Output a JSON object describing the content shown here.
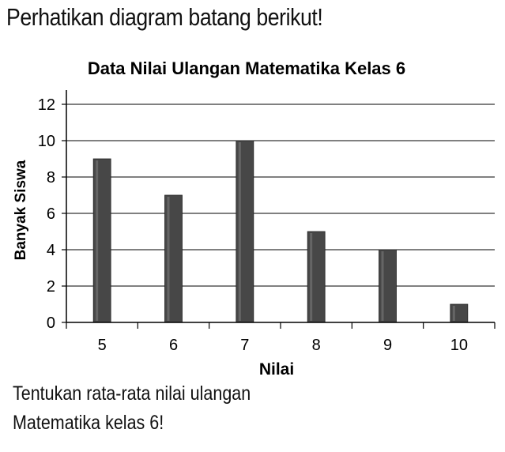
{
  "intro_text": "Perhatikan diagram batang berikut!",
  "question_lines": [
    "Tentukan rata-rata nilai ulangan",
    "Matematika kelas 6!"
  ],
  "colors": {
    "bar": "#474747",
    "bar_highlight": "#7a7a7a",
    "axis": "#000000",
    "grid": "#000000"
  },
  "chart_data": {
    "type": "bar",
    "title": "Data Nilai Ulangan Matematika Kelas 6",
    "xlabel": "Nilai",
    "ylabel": "Banyak Siswa",
    "categories": [
      "5",
      "6",
      "7",
      "8",
      "9",
      "10"
    ],
    "values": [
      9,
      7,
      10,
      5,
      4,
      1
    ],
    "ylim": [
      0,
      12
    ],
    "yticks": [
      "0",
      "2",
      "4",
      "6",
      "8",
      "10",
      "12"
    ],
    "grid": true,
    "legend": "none"
  }
}
